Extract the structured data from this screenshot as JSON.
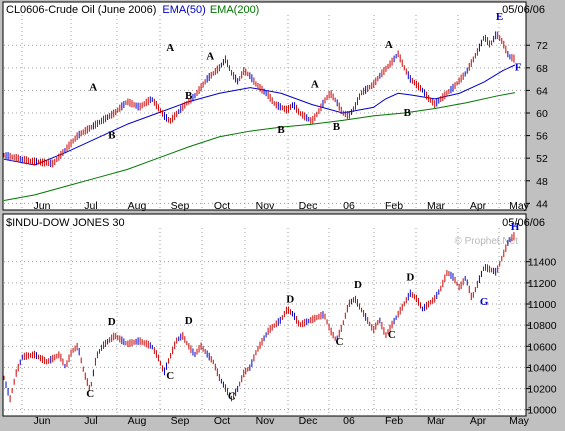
{
  "chart_data": [
    {
      "type": "line",
      "title_parts": [
        {
          "text": "CL0606-Crude Oil (June 2006)",
          "color": "#000000"
        },
        {
          "text": "EMA(50)",
          "color": "#0000cc"
        },
        {
          "text": "EMA(200)",
          "color": "#007700"
        }
      ],
      "date_label": "05/06/06",
      "price_color": "#cc0000",
      "ylim": [
        43,
        77
      ],
      "y_ticks": [
        44,
        48,
        52,
        56,
        60,
        64,
        68,
        72
      ],
      "x_ticks": [
        "Jun",
        "Jul",
        "Aug",
        "Sep",
        "Oct",
        "Nov",
        "Dec",
        "06",
        "Feb",
        "Mar",
        "Apr",
        "May"
      ],
      "price_points": [
        [
          0,
          52.5
        ],
        [
          4,
          51.5
        ],
        [
          8,
          51
        ],
        [
          10,
          53.5
        ],
        [
          12,
          56
        ],
        [
          15,
          58
        ],
        [
          18,
          60
        ],
        [
          20,
          62
        ],
        [
          22,
          61
        ],
        [
          24,
          62.5
        ],
        [
          25,
          61
        ],
        [
          26,
          59.5
        ],
        [
          27,
          58.5
        ],
        [
          29,
          61
        ],
        [
          31,
          63
        ],
        [
          33,
          66
        ],
        [
          35,
          68
        ],
        [
          36,
          69.5
        ],
        [
          37,
          67
        ],
        [
          38,
          65.5
        ],
        [
          39,
          67.5
        ],
        [
          40,
          66.5
        ],
        [
          41,
          65
        ],
        [
          43,
          63
        ],
        [
          44,
          61.5
        ],
        [
          46,
          60.5
        ],
        [
          47,
          61.5
        ],
        [
          48,
          60
        ],
        [
          50,
          58.5
        ],
        [
          51,
          60
        ],
        [
          52,
          62
        ],
        [
          53,
          63.5
        ],
        [
          54,
          62
        ],
        [
          55,
          60
        ],
        [
          56,
          59.5
        ],
        [
          57,
          61
        ],
        [
          58,
          63.5
        ],
        [
          60,
          65
        ],
        [
          61,
          66.5
        ],
        [
          63,
          69
        ],
        [
          64,
          70.5
        ],
        [
          65,
          68
        ],
        [
          66,
          66
        ],
        [
          68,
          64
        ],
        [
          69,
          62.5
        ],
        [
          70,
          61.5
        ],
        [
          71,
          62.5
        ],
        [
          72,
          63.5
        ],
        [
          73,
          64.5
        ],
        [
          75,
          67
        ],
        [
          77,
          71
        ],
        [
          78,
          73.5
        ],
        [
          79,
          72
        ],
        [
          80,
          74
        ],
        [
          81,
          72.5
        ],
        [
          82,
          70
        ],
        [
          83,
          69.5
        ]
      ],
      "ema50_points": [
        [
          0,
          51.8
        ],
        [
          5,
          50.8
        ],
        [
          10,
          53
        ],
        [
          15,
          55.5
        ],
        [
          20,
          58
        ],
        [
          25,
          60
        ],
        [
          30,
          62
        ],
        [
          35,
          63.5
        ],
        [
          40,
          64.5
        ],
        [
          45,
          63.5
        ],
        [
          50,
          61.5
        ],
        [
          55,
          60
        ],
        [
          60,
          61
        ],
        [
          62,
          62.5
        ],
        [
          64,
          63.5
        ],
        [
          66,
          63.2
        ],
        [
          70,
          62.5
        ],
        [
          74,
          63.5
        ],
        [
          78,
          65.5
        ],
        [
          81,
          67.5
        ],
        [
          83,
          68.5
        ]
      ],
      "ema200_points": [
        [
          0,
          44.5
        ],
        [
          5,
          45.5
        ],
        [
          10,
          47
        ],
        [
          15,
          48.5
        ],
        [
          20,
          50
        ],
        [
          25,
          52
        ],
        [
          30,
          54
        ],
        [
          35,
          55.8
        ],
        [
          40,
          56.8
        ],
        [
          45,
          57.5
        ],
        [
          50,
          58
        ],
        [
          55,
          58.7
        ],
        [
          60,
          59.5
        ],
        [
          65,
          60
        ],
        [
          70,
          60.8
        ],
        [
          75,
          61.8
        ],
        [
          80,
          63
        ],
        [
          83,
          63.6
        ]
      ],
      "pattern_labels": [
        {
          "label": "A",
          "x": 14.5,
          "y": 64
        },
        {
          "label": "B",
          "x": 17.5,
          "y": 55.5
        },
        {
          "label": "A",
          "x": 27,
          "y": 71
        },
        {
          "label": "B",
          "x": 30,
          "y": 62.5
        },
        {
          "label": "A",
          "x": 33.5,
          "y": 69.5
        },
        {
          "label": "B",
          "x": 45,
          "y": 56.5
        },
        {
          "label": "A",
          "x": 50.5,
          "y": 64.5
        },
        {
          "label": "B",
          "x": 54,
          "y": 57
        },
        {
          "label": "A",
          "x": 62.5,
          "y": 71.5
        },
        {
          "label": "B",
          "x": 65.5,
          "y": 59.5
        },
        {
          "label": "E",
          "x": 80.5,
          "y": 76.5
        },
        {
          "label": "F",
          "x": 83.5,
          "y": 67.5
        }
      ]
    },
    {
      "type": "line",
      "title_parts": [
        {
          "text": "$INDU-DOW JONES 30",
          "color": "#000000"
        }
      ],
      "date_label": "05/06/06",
      "watermark": "© Prophet.Net",
      "price_color": "#cc0000",
      "ylim": [
        9950,
        11700
      ],
      "y_ticks": [
        10000,
        10200,
        10400,
        10600,
        10800,
        11000,
        11200,
        11400
      ],
      "x_ticks": [
        "Jun",
        "Jul",
        "Aug",
        "Sep",
        "Oct",
        "Nov",
        "Dec",
        "06",
        "Feb",
        "Mar",
        "Apr",
        "May"
      ],
      "price_points": [
        [
          0,
          10300
        ],
        [
          1,
          10100
        ],
        [
          2,
          10350
        ],
        [
          3,
          10500
        ],
        [
          5,
          10520
        ],
        [
          7,
          10450
        ],
        [
          9,
          10520
        ],
        [
          10,
          10400
        ],
        [
          11,
          10550
        ],
        [
          12,
          10600
        ],
        [
          13,
          10350
        ],
        [
          14,
          10180
        ],
        [
          15,
          10500
        ],
        [
          16,
          10600
        ],
        [
          17,
          10650
        ],
        [
          18,
          10700
        ],
        [
          20,
          10620
        ],
        [
          22,
          10650
        ],
        [
          24,
          10600
        ],
        [
          25,
          10500
        ],
        [
          26,
          10350
        ],
        [
          27,
          10500
        ],
        [
          28,
          10650
        ],
        [
          29,
          10700
        ],
        [
          30,
          10600
        ],
        [
          31,
          10520
        ],
        [
          32,
          10600
        ],
        [
          34,
          10450
        ],
        [
          35,
          10300
        ],
        [
          36,
          10200
        ],
        [
          37,
          10100
        ],
        [
          38,
          10200
        ],
        [
          39,
          10350
        ],
        [
          40,
          10400
        ],
        [
          41,
          10550
        ],
        [
          43,
          10750
        ],
        [
          45,
          10850
        ],
        [
          46,
          10950
        ],
        [
          47,
          10900
        ],
        [
          48,
          10800
        ],
        [
          50,
          10850
        ],
        [
          52,
          10900
        ],
        [
          53,
          10750
        ],
        [
          54,
          10650
        ],
        [
          55,
          10800
        ],
        [
          56,
          11000
        ],
        [
          57,
          11050
        ],
        [
          58,
          10950
        ],
        [
          59,
          10850
        ],
        [
          60,
          10750
        ],
        [
          61,
          10850
        ],
        [
          62,
          10700
        ],
        [
          63,
          10800
        ],
        [
          64,
          10900
        ],
        [
          65,
          11000
        ],
        [
          66,
          11100
        ],
        [
          67,
          11050
        ],
        [
          68,
          10950
        ],
        [
          70,
          11050
        ],
        [
          71,
          11150
        ],
        [
          72,
          11300
        ],
        [
          73,
          11250
        ],
        [
          74,
          11150
        ],
        [
          75,
          11250
        ],
        [
          76,
          11050
        ],
        [
          77,
          11200
        ],
        [
          78,
          11350
        ],
        [
          80,
          11300
        ],
        [
          81,
          11450
        ],
        [
          82,
          11600
        ],
        [
          83,
          11650
        ]
      ],
      "pattern_labels": [
        {
          "label": "C",
          "x": 14,
          "y": 10120
        },
        {
          "label": "D",
          "x": 17.5,
          "y": 10800
        },
        {
          "label": "C",
          "x": 27,
          "y": 10290
        },
        {
          "label": "D",
          "x": 30,
          "y": 10810
        },
        {
          "label": "C",
          "x": 37,
          "y": 10095
        },
        {
          "label": "D",
          "x": 46.5,
          "y": 11015
        },
        {
          "label": "C",
          "x": 54.5,
          "y": 10610
        },
        {
          "label": "D",
          "x": 57.5,
          "y": 11150
        },
        {
          "label": "C",
          "x": 63,
          "y": 10680
        },
        {
          "label": "D",
          "x": 66,
          "y": 11220
        },
        {
          "label": "G",
          "x": 78,
          "y": 10990
        },
        {
          "label": "H",
          "x": 83,
          "y": 11700
        }
      ]
    }
  ]
}
